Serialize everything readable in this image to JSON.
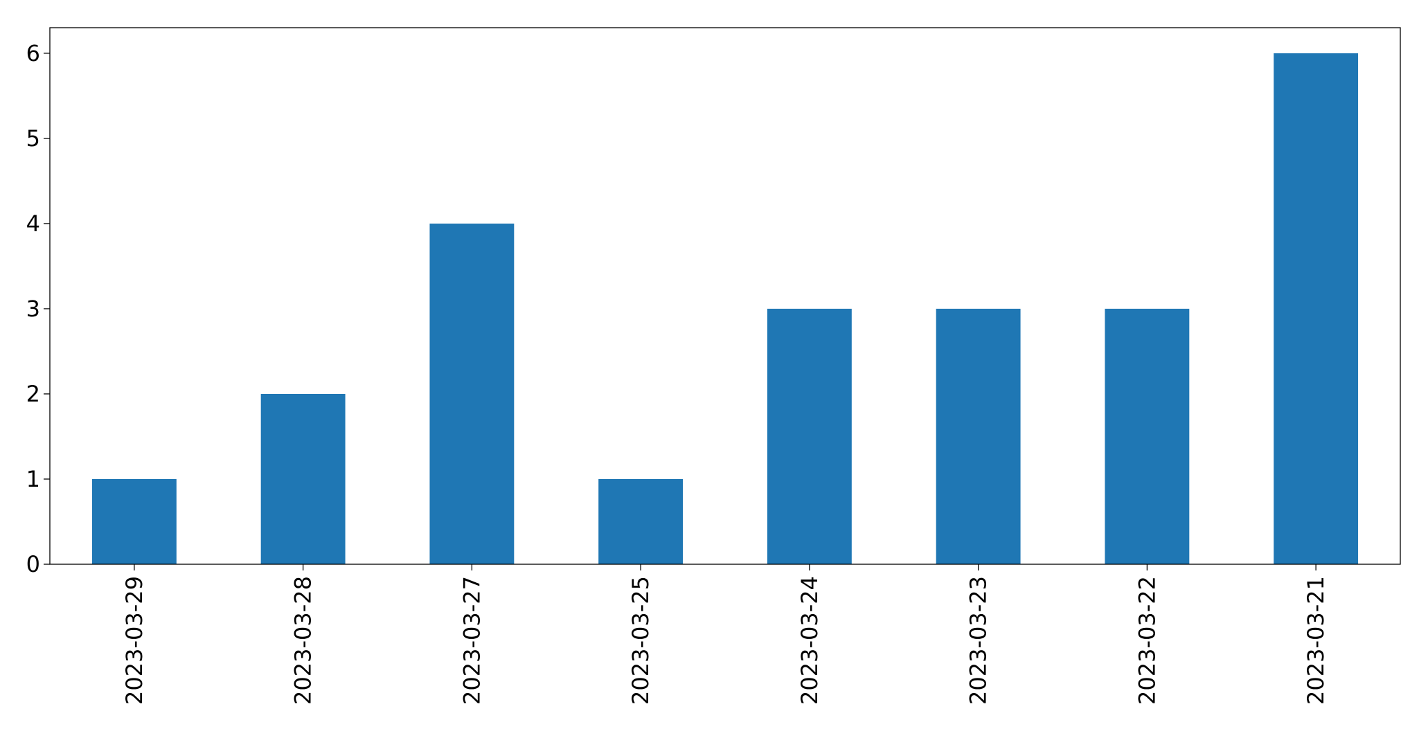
{
  "chart_data": {
    "type": "bar",
    "title": "",
    "xlabel": "",
    "ylabel": "",
    "categories": [
      "2023-03-29",
      "2023-03-28",
      "2023-03-27",
      "2023-03-25",
      "2023-03-24",
      "2023-03-23",
      "2023-03-22",
      "2023-03-21"
    ],
    "values": [
      1,
      2,
      4,
      1,
      3,
      3,
      3,
      6
    ],
    "ylim": [
      0,
      6.3
    ],
    "yticks": [
      0,
      1,
      2,
      3,
      4,
      5,
      6
    ],
    "bar_color": "#1f77b4",
    "grid": false,
    "legend": "none"
  }
}
